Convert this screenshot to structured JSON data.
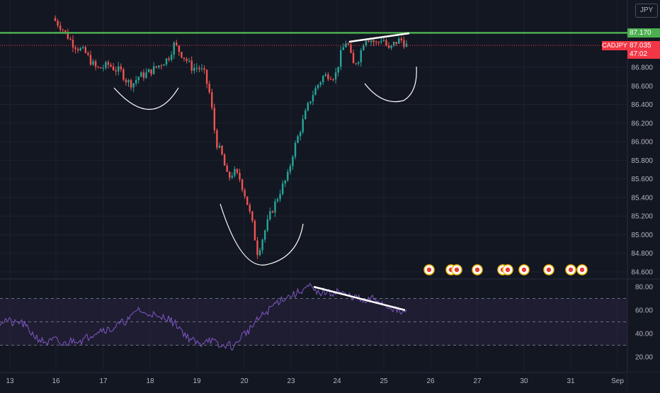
{
  "symbol": "CADJPY",
  "currency": "JPY",
  "price_labels": {
    "resistance": "87.170",
    "last": "87.035",
    "countdown": "47:02"
  },
  "colors": {
    "background": "#131722",
    "up": "#26a69a",
    "down": "#ef5350",
    "resistance_line": "#4caf50",
    "last_price": "#f23645",
    "rsi_line": "#7e57c2",
    "rsi_band": "#2a2340",
    "axis_text": "#b2b5be",
    "annotation": "#ffffff"
  },
  "icons": [
    "event-marker-icon",
    "flag-icon"
  ],
  "chart_data": [
    {
      "type": "candlestick",
      "symbol": "CADJPY",
      "y_ticks": [
        86.8,
        86.6,
        86.4,
        86.2,
        86.0,
        85.8,
        85.6,
        85.4,
        85.2,
        85.0,
        84.8,
        84.6
      ],
      "ylim": [
        84.56,
        87.32
      ],
      "x_ticks": [
        "13",
        "16",
        "17",
        "18",
        "19",
        "20",
        "23",
        "24",
        "25",
        "26",
        "27",
        "30",
        "31",
        "Sep"
      ],
      "resistance_level": 87.17,
      "last_price": 87.035,
      "grid": true,
      "series_close": [
        87.3,
        87.23,
        87.14,
        87.05,
        87.0,
        86.96,
        86.86,
        86.78,
        86.8,
        86.83,
        86.78,
        86.76,
        86.65,
        86.62,
        86.7,
        86.72,
        86.76,
        86.8,
        86.85,
        86.9,
        87.05,
        86.96,
        86.88,
        86.79,
        86.8,
        86.74,
        86.5,
        86.0,
        85.85,
        85.6,
        85.68,
        85.6,
        85.4,
        85.15,
        84.8,
        85.0,
        85.2,
        85.35,
        85.5,
        85.62,
        85.9,
        86.1,
        86.3,
        86.48,
        86.6,
        86.7,
        86.72,
        86.7,
        86.95,
        87.1,
        86.82,
        86.9,
        87.12,
        87.1,
        87.05,
        87.12,
        86.98,
        87.06,
        87.1,
        87.035
      ],
      "annotations": [
        "support-curve-left",
        "support-curve-bottom",
        "support-curve-right",
        "higher-high-trendline"
      ],
      "event_markers": 9
    },
    {
      "type": "line",
      "name": "RSI",
      "y_ticks": [
        80.0,
        60.0,
        40.0,
        20.0
      ],
      "ylim": [
        10,
        85
      ],
      "levels": [
        70,
        50,
        30
      ],
      "series": [
        50,
        52,
        48,
        50,
        44,
        38,
        34,
        32,
        35,
        30,
        33,
        35,
        34,
        38,
        42,
        44,
        43,
        47,
        50,
        53,
        62,
        56,
        58,
        52,
        55,
        50,
        46,
        38,
        34,
        30,
        36,
        33,
        28,
        31,
        28,
        38,
        42,
        49,
        55,
        60,
        66,
        70,
        72,
        74,
        78,
        80,
        74,
        76,
        74,
        77,
        73,
        72,
        70,
        66,
        70,
        68,
        64,
        62,
        58,
        58
      ],
      "divergence_line": {
        "from": 80,
        "to": 60
      }
    }
  ]
}
